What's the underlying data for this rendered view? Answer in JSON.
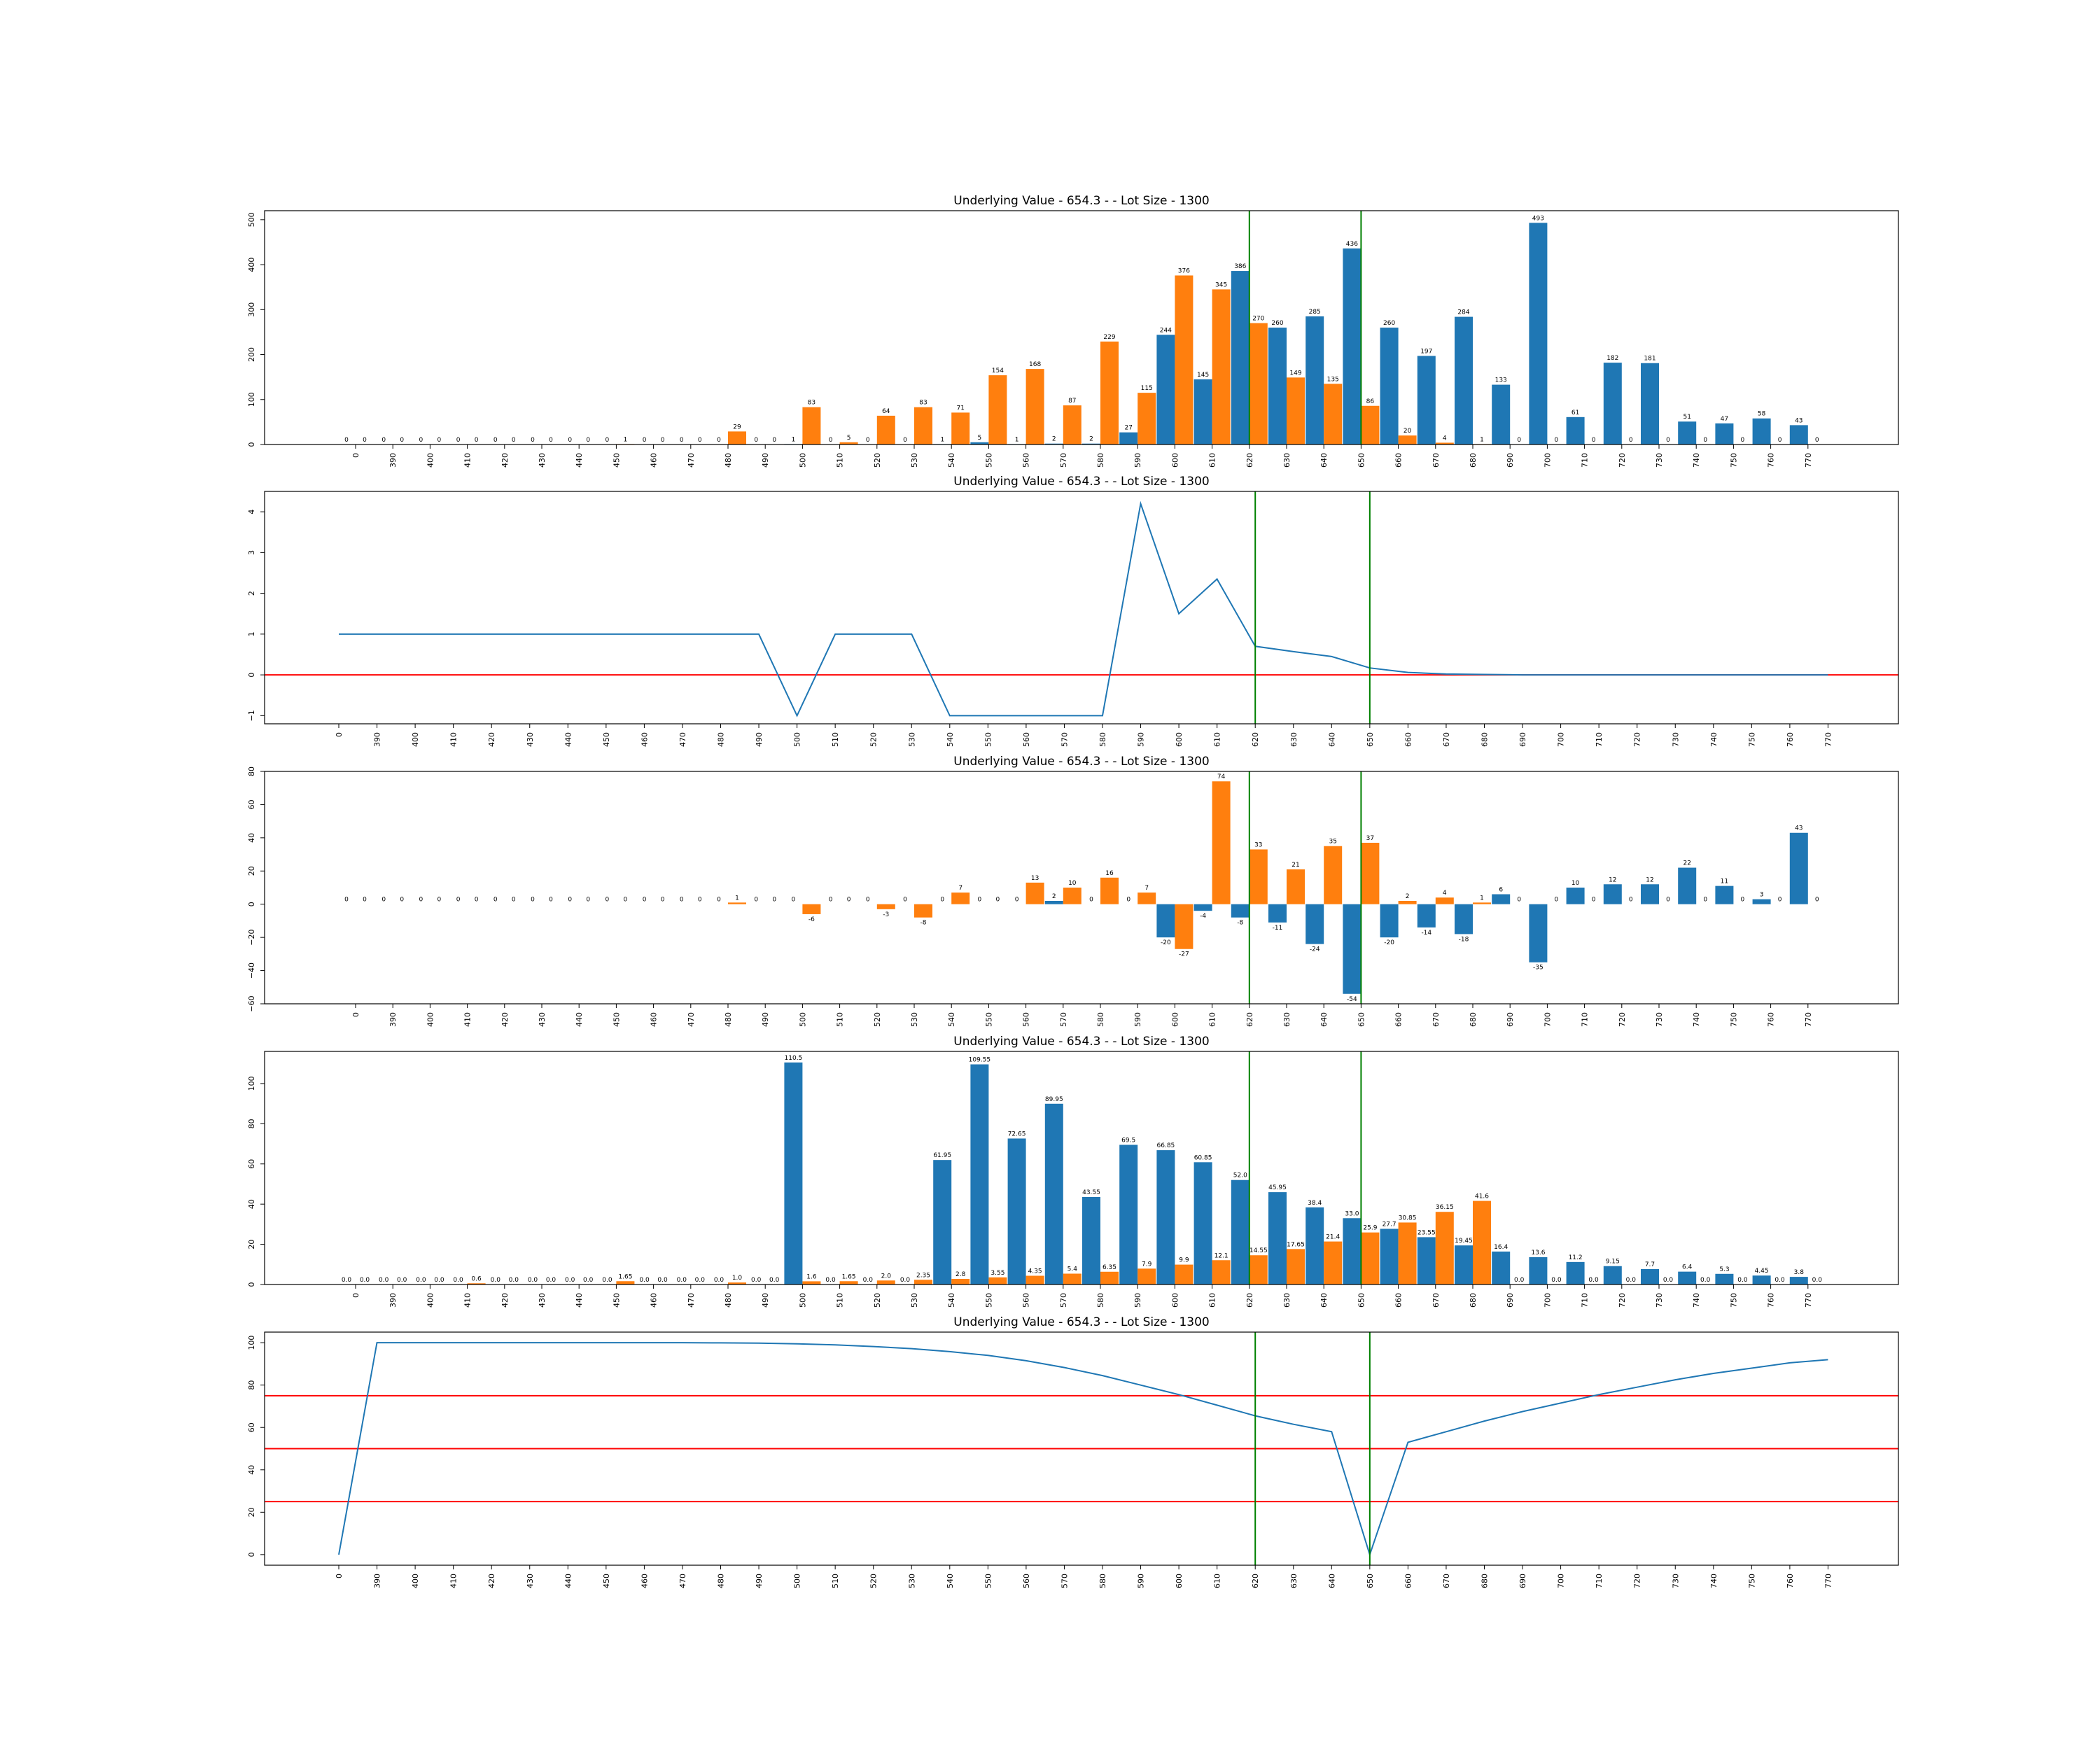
{
  "colors": {
    "calls": "#1f77b4",
    "puts": "#ff7f0e",
    "line": "#1f77b4",
    "ref_hline": "#ff0000",
    "marker_vline": "#008000"
  },
  "markers": [
    620,
    650
  ],
  "x_labels": [
    "0",
    "390",
    "400",
    "410",
    "420",
    "430",
    "440",
    "450",
    "460",
    "470",
    "480",
    "490",
    "500",
    "510",
    "520",
    "530",
    "540",
    "550",
    "560",
    "570",
    "580",
    "590",
    "600",
    "610",
    "620",
    "630",
    "640",
    "650",
    "660",
    "670",
    "680",
    "690",
    "700",
    "710",
    "720",
    "730",
    "740",
    "750",
    "760",
    "770"
  ],
  "chart_data": [
    {
      "type": "bar",
      "title": "Underlying Value - 654.3 - - Lot Size - 1300",
      "ylim": [
        0,
        520
      ],
      "yticks": [
        0,
        100,
        200,
        300,
        400,
        500
      ],
      "series": [
        {
          "color": "calls",
          "values": [
            0,
            0,
            0,
            0,
            0,
            0,
            0,
            0,
            0,
            0,
            0,
            0,
            1,
            0,
            0,
            0,
            1,
            5,
            1,
            2,
            2,
            27,
            244,
            145,
            386,
            260,
            285,
            436,
            260,
            197,
            284,
            133,
            493,
            61,
            182,
            181,
            51,
            47,
            58,
            43
          ]
        },
        {
          "color": "puts",
          "values": [
            0,
            0,
            0,
            0,
            0,
            0,
            0,
            1,
            0,
            0,
            29,
            0,
            83,
            5,
            64,
            83,
            71,
            154,
            168,
            87,
            229,
            115,
            376,
            345,
            270,
            149,
            135,
            86,
            20,
            4,
            1,
            0,
            0,
            0,
            0,
            0,
            0,
            0,
            0,
            0
          ]
        }
      ]
    },
    {
      "type": "line",
      "title": "Underlying Value - 654.3 - - Lot Size - 1300",
      "ylim": [
        -1.2,
        4.5
      ],
      "yticks": [
        -1,
        0,
        1,
        2,
        3,
        4
      ],
      "hlines": [
        0
      ],
      "values": [
        1,
        1,
        1,
        1,
        1,
        1,
        1,
        1,
        1,
        1,
        1,
        1,
        -1,
        1,
        1,
        1,
        -1,
        -1,
        -1,
        -1,
        -1,
        4.2,
        1.5,
        2.35,
        0.7,
        0.57,
        0.45,
        0.17,
        0.06,
        0.02,
        0.01,
        0,
        0,
        0,
        0,
        0,
        0,
        0,
        0,
        0
      ]
    },
    {
      "type": "bar",
      "title": "Underlying Value - 654.3 - - Lot Size - 1300",
      "ylim": [
        -60,
        80
      ],
      "yticks": [
        -60,
        -40,
        -20,
        0,
        20,
        40,
        60,
        80
      ],
      "series": [
        {
          "color": "calls",
          "values": [
            0,
            0,
            0,
            0,
            0,
            0,
            0,
            0,
            0,
            0,
            0,
            0,
            0,
            0,
            0,
            0,
            0,
            0,
            0,
            2,
            0,
            0,
            -20,
            -4,
            -8,
            -11,
            -24,
            -54,
            -20,
            -14,
            -18,
            6,
            -35,
            10,
            12,
            12,
            22,
            11,
            3,
            43
          ]
        },
        {
          "color": "puts",
          "values": [
            0,
            0,
            0,
            0,
            0,
            0,
            0,
            0,
            0,
            0,
            1,
            0,
            -6,
            0,
            -3,
            -8,
            7,
            0,
            13,
            10,
            16,
            7,
            -27,
            74,
            33,
            21,
            35,
            37,
            2,
            4,
            1,
            0,
            0,
            0,
            0,
            0,
            0,
            0,
            0,
            0
          ]
        }
      ]
    },
    {
      "type": "bar",
      "title": "Underlying Value - 654.3 - - Lot Size - 1300",
      "ylim": [
        0,
        116
      ],
      "yticks": [
        0,
        20,
        40,
        60,
        80,
        100
      ],
      "series": [
        {
          "color": "calls",
          "values": [
            "0.0",
            "0.0",
            "0.0",
            "0.0",
            "0.0",
            "0.0",
            "0.0",
            "0.0",
            "0.0",
            "0.0",
            "0.0",
            "0.0",
            "110.5",
            "0.0",
            "0.0",
            "0.0",
            "61.95",
            "109.55",
            "72.65",
            "89.95",
            "43.55",
            "69.5",
            "66.85",
            "60.85",
            "52.0",
            "45.95",
            "38.4",
            "33.0",
            "27.7",
            "23.55",
            "19.45",
            "16.4",
            "13.6",
            "11.2",
            "9.15",
            "7.7",
            "6.4",
            "5.3",
            "4.45",
            "3.8"
          ]
        },
        {
          "color": "puts",
          "values": [
            "0.0",
            "0.0",
            "0.0",
            "0.6",
            "0.0",
            "0.0",
            "0.0",
            "1.65",
            "0.0",
            "0.0",
            "1.0",
            "0.0",
            "1.6",
            "1.65",
            "2.0",
            "2.35",
            "2.8",
            "3.55",
            "4.35",
            "5.4",
            "6.35",
            "7.9",
            "9.9",
            "12.1",
            "14.55",
            "17.65",
            "21.4",
            "25.9",
            "30.85",
            "36.15",
            "41.6",
            "0.0",
            "0.0",
            "0.0",
            "0.0",
            "0.0",
            "0.0",
            "0.0",
            "0.0",
            "0.0"
          ]
        }
      ]
    },
    {
      "type": "line",
      "title": "Underlying Value - 654.3 - - Lot Size - 1300",
      "ylim": [
        -5,
        105
      ],
      "yticks": [
        0,
        20,
        40,
        60,
        80,
        100
      ],
      "hlines": [
        25,
        50,
        75
      ],
      "values": [
        0,
        100,
        100,
        100,
        100,
        100,
        100,
        100,
        100,
        100,
        99.9,
        99.8,
        99.5,
        99,
        98.2,
        97.2,
        95.8,
        94,
        91.5,
        88.3,
        84.5,
        80,
        75.5,
        70.5,
        65.5,
        61.5,
        58,
        0,
        53,
        58,
        63,
        67.5,
        71.5,
        75.5,
        79,
        82.5,
        85.5,
        88,
        90.5,
        92
      ]
    }
  ]
}
